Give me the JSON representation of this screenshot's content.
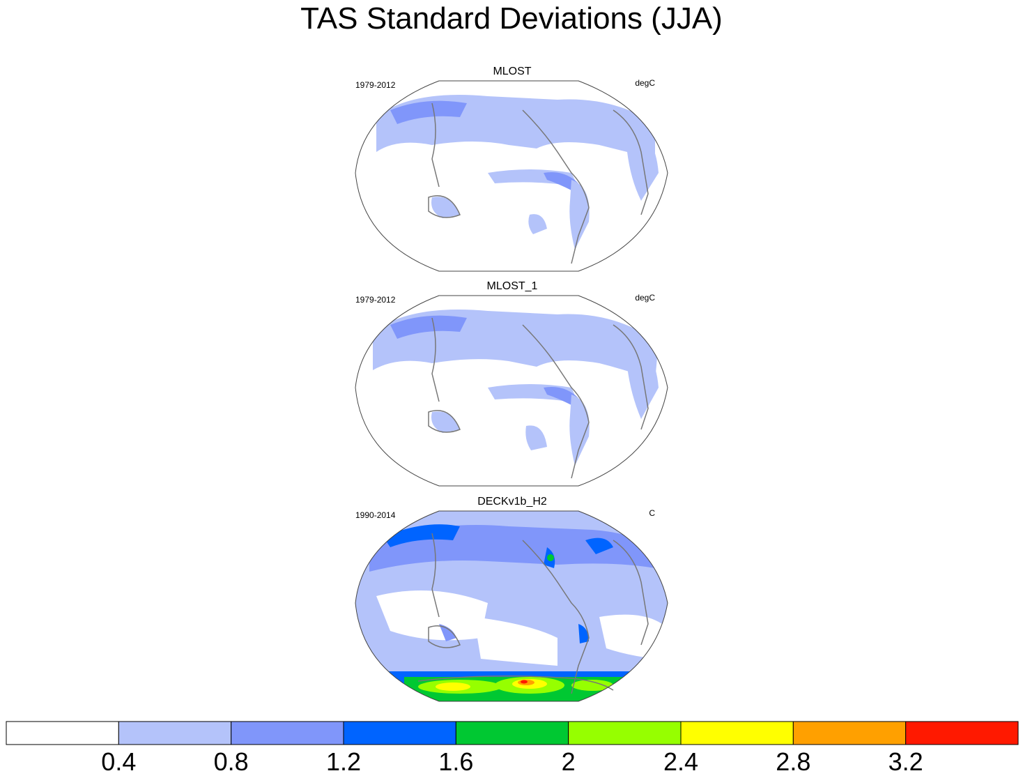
{
  "title": "TAS Standard Deviations (JJA)",
  "panels": [
    {
      "title": "MLOST",
      "period": "1979-2012",
      "units": "degC"
    },
    {
      "title": "MLOST_1",
      "period": "1979-2012",
      "units": "degC"
    },
    {
      "title": "DECKv1b_H2",
      "period": "1990-2014",
      "units": "C"
    }
  ],
  "colorbar": {
    "labels": [
      "0.4",
      "0.8",
      "1.2",
      "1.6",
      "2",
      "2.4",
      "2.8",
      "3.2"
    ],
    "colors": [
      "#ffffff",
      "#b4c3fa",
      "#8096fa",
      "#0064ff",
      "#00c832",
      "#96ff00",
      "#ffff00",
      "#ffa000",
      "#ff1900"
    ]
  },
  "colors": {
    "coastline": "#777777",
    "border": "#444444"
  }
}
